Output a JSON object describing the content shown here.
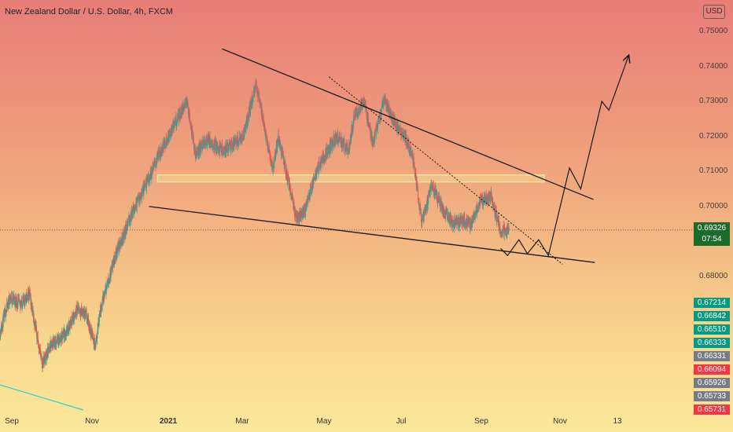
{
  "title": "New Zealand Dollar / U.S. Dollar, 4h, FXCM",
  "currency_badge": "USD",
  "current_price": "0.69326",
  "countdown": "07:54",
  "price_tags": [
    {
      "label": "0.67214",
      "color": "#089981"
    },
    {
      "label": "0.66842",
      "color": "#089981"
    },
    {
      "label": "0.66510",
      "color": "#089981"
    },
    {
      "label": "0.66333",
      "color": "#089981"
    },
    {
      "label": "0.66331",
      "color": "#787b86"
    },
    {
      "label": "0.66094",
      "color": "#f23645"
    },
    {
      "label": "0.65926",
      "color": "#787b86"
    },
    {
      "label": "0.65733",
      "color": "#787b86"
    },
    {
      "label": "0.65731",
      "color": "#f23645"
    }
  ],
  "colors": {
    "up": "#26a69a",
    "down": "#ef5350",
    "trendline": "#1a1a1a",
    "zone": "#f5f0a0"
  },
  "chart_data": {
    "type": "candlestick",
    "symbol": "NZDUSD",
    "timeframe": "4h",
    "ylim": [
      0.6545,
      0.7525
    ],
    "y_ticks": [
      "0.75000",
      "0.74000",
      "0.73000",
      "0.72000",
      "0.71000",
      "0.70000",
      "0.68000"
    ],
    "x_ticks": [
      "Sep",
      "Nov",
      "2021",
      "Mar",
      "May",
      "Jul",
      "Sep",
      "Nov",
      "13"
    ],
    "x_range": [
      "2020-08-26",
      "2021-12-20"
    ],
    "price_path": [
      [
        "2020-08-26",
        0.664
      ],
      [
        "2020-09-02",
        0.674
      ],
      [
        "2020-09-10",
        0.672
      ],
      [
        "2020-09-16",
        0.675
      ],
      [
        "2020-09-25",
        0.655
      ],
      [
        "2020-10-02",
        0.661
      ],
      [
        "2020-10-08",
        0.662
      ],
      [
        "2020-10-12",
        0.664
      ],
      [
        "2020-10-20",
        0.671
      ],
      [
        "2020-10-26",
        0.669
      ],
      [
        "2020-11-02",
        0.66
      ],
      [
        "2020-11-05",
        0.67
      ],
      [
        "2020-11-16",
        0.686
      ],
      [
        "2020-11-30",
        0.7
      ],
      [
        "2020-12-10",
        0.708
      ],
      [
        "2020-12-16",
        0.714
      ],
      [
        "2020-12-25",
        0.721
      ],
      [
        "2021-01-06",
        0.73
      ],
      [
        "2021-01-12",
        0.715
      ],
      [
        "2021-01-20",
        0.719
      ],
      [
        "2021-02-01",
        0.716
      ],
      [
        "2021-02-15",
        0.72
      ],
      [
        "2021-02-24",
        0.735
      ],
      [
        "2021-03-01",
        0.725
      ],
      [
        "2021-03-08",
        0.71
      ],
      [
        "2021-03-12",
        0.72
      ],
      [
        "2021-03-25",
        0.696
      ],
      [
        "2021-03-31",
        0.699
      ],
      [
        "2021-04-08",
        0.71
      ],
      [
        "2021-04-15",
        0.715
      ],
      [
        "2021-04-22",
        0.72
      ],
      [
        "2021-05-01",
        0.716
      ],
      [
        "2021-05-05",
        0.726
      ],
      [
        "2021-05-12",
        0.73
      ],
      [
        "2021-05-18",
        0.718
      ],
      [
        "2021-05-26",
        0.73
      ],
      [
        "2021-06-04",
        0.723
      ],
      [
        "2021-06-10",
        0.72
      ],
      [
        "2021-06-16",
        0.713
      ],
      [
        "2021-06-22",
        0.695
      ],
      [
        "2021-06-29",
        0.706
      ],
      [
        "2021-07-06",
        0.7
      ],
      [
        "2021-07-14",
        0.695
      ],
      [
        "2021-07-20",
        0.696
      ],
      [
        "2021-07-27",
        0.695
      ],
      [
        "2021-08-02",
        0.701
      ],
      [
        "2021-08-10",
        0.703
      ],
      [
        "2021-08-17",
        0.693
      ],
      [
        "2021-08-23",
        0.693
      ]
    ],
    "annotations": {
      "resistance_line": [
        [
          "2021-01-31",
          0.745
        ],
        [
          "2021-10-22",
          0.702
        ]
      ],
      "support_line": [
        [
          "2020-12-10",
          0.7
        ],
        [
          "2021-10-23",
          0.684
        ]
      ],
      "dotted_line": [
        [
          "2021-04-17",
          0.737
        ],
        [
          "2021-09-30",
          0.6835
        ]
      ],
      "zone": {
        "from": "2020-12-16",
        "to": "2021-09-17",
        "low": 0.707,
        "high": 0.709
      },
      "projection": [
        [
          "2021-08-17",
          0.688
        ],
        [
          "2021-08-22",
          0.686
        ],
        [
          "2021-08-30",
          0.6905
        ],
        [
          "2021-09-05",
          0.6865
        ],
        [
          "2021-09-13",
          0.6905
        ],
        [
          "2021-09-20",
          0.686
        ],
        [
          "2021-10-05",
          0.711
        ],
        [
          "2021-10-13",
          0.705
        ],
        [
          "2021-10-28",
          0.73
        ],
        [
          "2021-11-02",
          0.7275
        ],
        [
          "2021-11-16",
          0.743
        ]
      ]
    },
    "current_price": 0.69326
  }
}
